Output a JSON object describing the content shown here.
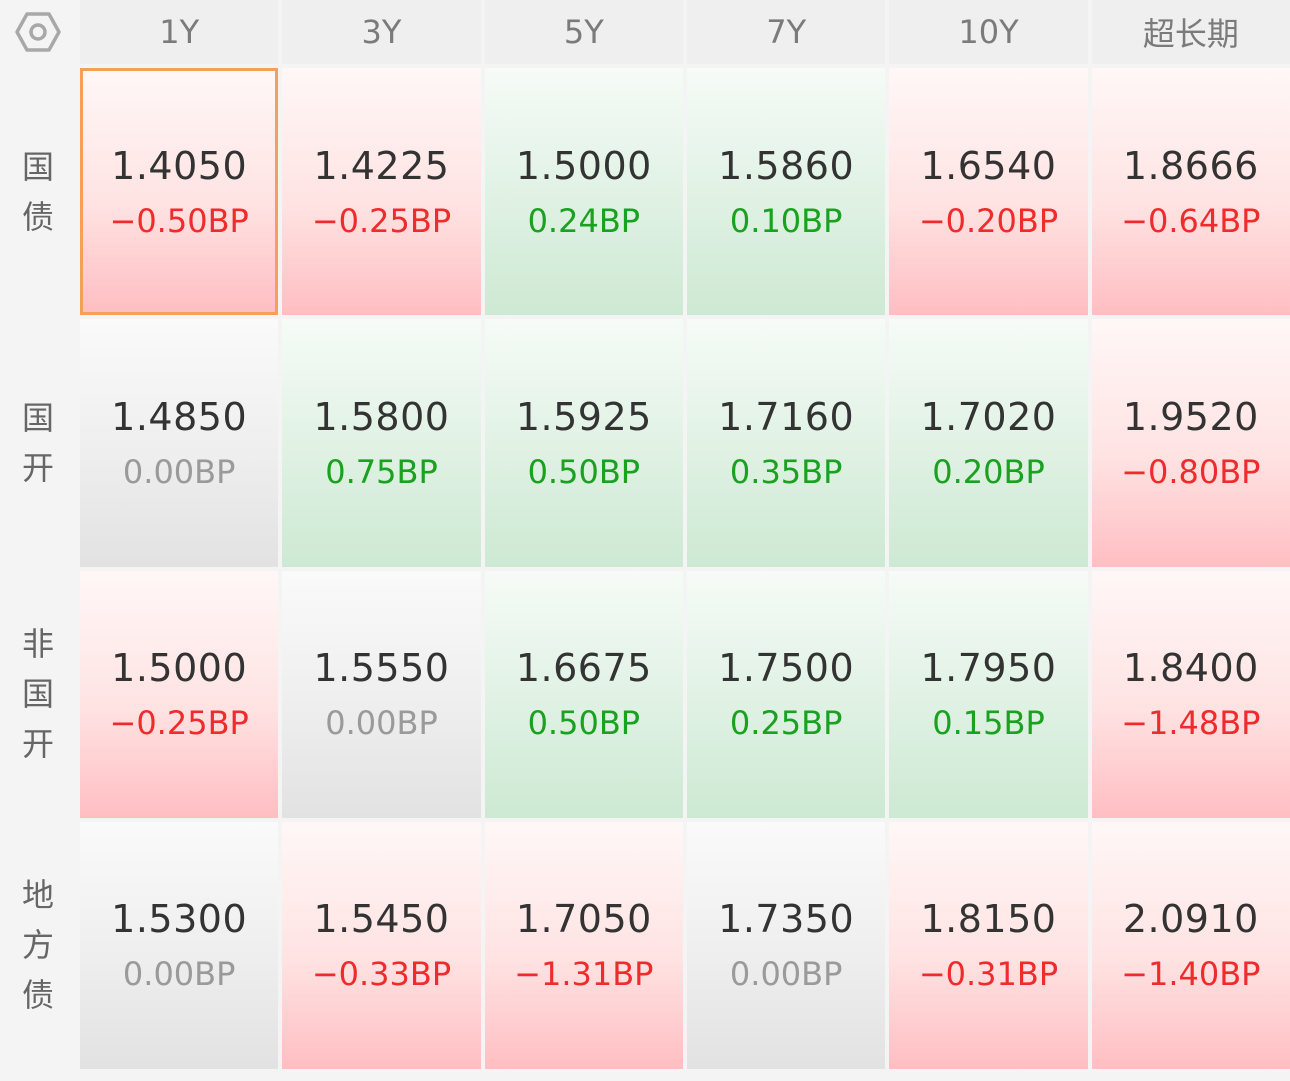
{
  "header": {
    "corner_icon": "hexagon-settings-icon",
    "columns": [
      "1Y",
      "3Y",
      "5Y",
      "7Y",
      "10Y",
      "超长期"
    ]
  },
  "rows": [
    {
      "label_chars": [
        "国",
        "债"
      ],
      "cells": [
        {
          "value": "1.4050",
          "change": "−0.50BP",
          "trend": "up",
          "selected": true
        },
        {
          "value": "1.4225",
          "change": "−0.25BP",
          "trend": "up"
        },
        {
          "value": "1.5000",
          "change": "0.24BP",
          "trend": "down"
        },
        {
          "value": "1.5860",
          "change": "0.10BP",
          "trend": "down"
        },
        {
          "value": "1.6540",
          "change": "−0.20BP",
          "trend": "up"
        },
        {
          "value": "1.8666",
          "change": "−0.64BP",
          "trend": "up"
        }
      ]
    },
    {
      "label_chars": [
        "国",
        "开"
      ],
      "cells": [
        {
          "value": "1.4850",
          "change": "0.00BP",
          "trend": "flat"
        },
        {
          "value": "1.5800",
          "change": "0.75BP",
          "trend": "down"
        },
        {
          "value": "1.5925",
          "change": "0.50BP",
          "trend": "down"
        },
        {
          "value": "1.7160",
          "change": "0.35BP",
          "trend": "down"
        },
        {
          "value": "1.7020",
          "change": "0.20BP",
          "trend": "down"
        },
        {
          "value": "1.9520",
          "change": "−0.80BP",
          "trend": "up"
        }
      ]
    },
    {
      "label_chars": [
        "非",
        "国",
        "开"
      ],
      "cells": [
        {
          "value": "1.5000",
          "change": "−0.25BP",
          "trend": "up"
        },
        {
          "value": "1.5550",
          "change": "0.00BP",
          "trend": "flat"
        },
        {
          "value": "1.6675",
          "change": "0.50BP",
          "trend": "down"
        },
        {
          "value": "1.7500",
          "change": "0.25BP",
          "trend": "down"
        },
        {
          "value": "1.7950",
          "change": "0.15BP",
          "trend": "down"
        },
        {
          "value": "1.8400",
          "change": "−1.48BP",
          "trend": "up"
        }
      ]
    },
    {
      "label_chars": [
        "地",
        "方",
        "债"
      ],
      "cells": [
        {
          "value": "1.5300",
          "change": "0.00BP",
          "trend": "flat"
        },
        {
          "value": "1.5450",
          "change": "−0.33BP",
          "trend": "up"
        },
        {
          "value": "1.7050",
          "change": "−1.31BP",
          "trend": "up"
        },
        {
          "value": "1.7350",
          "change": "0.00BP",
          "trend": "flat"
        },
        {
          "value": "1.8150",
          "change": "−0.31BP",
          "trend": "up"
        },
        {
          "value": "2.0910",
          "change": "−1.40BP",
          "trend": "up"
        }
      ]
    }
  ],
  "colors": {
    "up_text": "#ef2b2b",
    "down_text": "#19a11f",
    "flat_text": "#9a9a9a",
    "selected_border": "#f5a05a"
  }
}
